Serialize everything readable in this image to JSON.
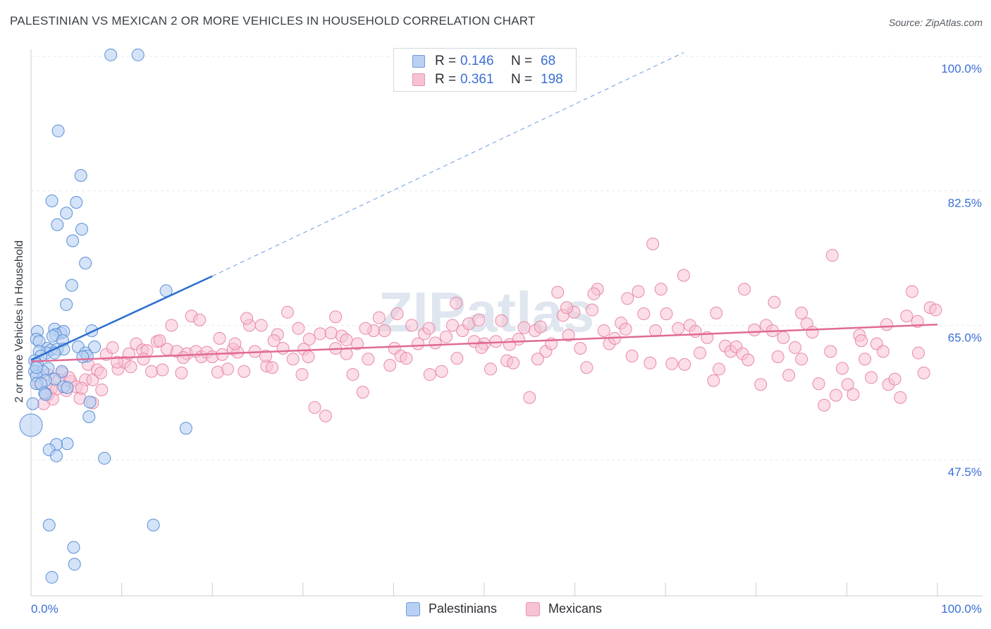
{
  "title": "PALESTINIAN VS MEXICAN 2 OR MORE VEHICLES IN HOUSEHOLD CORRELATION CHART",
  "source": "Source: ZipAtlas.com",
  "watermark": "ZIPatlas",
  "legend": {
    "rows": [
      {
        "r_label": "R =",
        "r_value": "0.146",
        "n_label": "N =",
        "n_value": "68"
      },
      {
        "r_label": "R =",
        "r_value": "0.361",
        "n_label": "N =",
        "n_value": "198"
      }
    ]
  },
  "bottom_legend": [
    "Palestinians",
    "Mexicans"
  ],
  "colors": {
    "blue_fill": "#b8d0f2",
    "blue_stroke": "#5b8fd9",
    "blue_line": "#2a6fd0",
    "pink_fill": "#f7c3d4",
    "pink_stroke": "#e888a8",
    "pink_line": "#e06a94",
    "tick_label": "#3a6fd6",
    "grid": "#e6e9ee"
  },
  "chart_data": {
    "type": "scatter",
    "title": "PALESTINIAN VS MEXICAN 2 OR MORE VEHICLES IN HOUSEHOLD CORRELATION CHART",
    "xlabel": "",
    "ylabel": "2 or more Vehicles in Household",
    "xlim": [
      0,
      100
    ],
    "ylim": [
      29,
      102
    ],
    "x_tick_labels": [
      "0.0%",
      "100.0%"
    ],
    "y_ticks": [
      100.0,
      82.5,
      65.0,
      47.5
    ],
    "y_tick_labels": [
      "100.0%",
      "82.5%",
      "65.0%",
      "47.5%"
    ],
    "grid": true,
    "series": [
      {
        "name": "Palestinians",
        "r": 0.146,
        "n": 68,
        "trend": {
          "x0": 0,
          "y0": 60.5,
          "x1": 20,
          "y1": 71.4,
          "extend_to_x": 72,
          "extend_to_y": 100.5
        },
        "points": [
          [
            8.8,
            100.2
          ],
          [
            11.8,
            100.2
          ],
          [
            3.0,
            90.3
          ],
          [
            5.5,
            84.5
          ],
          [
            2.3,
            81.2
          ],
          [
            5.0,
            81.0
          ],
          [
            3.9,
            79.6
          ],
          [
            2.9,
            78.1
          ],
          [
            5.6,
            77.5
          ],
          [
            4.6,
            76.0
          ],
          [
            6.0,
            73.1
          ],
          [
            4.5,
            70.2
          ],
          [
            14.9,
            69.5
          ],
          [
            3.9,
            67.7
          ],
          [
            2.6,
            64.5
          ],
          [
            3.3,
            64.0
          ],
          [
            0.7,
            64.2
          ],
          [
            3.6,
            64.2
          ],
          [
            2.7,
            63.8
          ],
          [
            6.7,
            64.3
          ],
          [
            0.6,
            63.2
          ],
          [
            2.4,
            63.6
          ],
          [
            0.9,
            62.9
          ],
          [
            3.5,
            63.0
          ],
          [
            1.8,
            62.0
          ],
          [
            2.2,
            61.8
          ],
          [
            2.9,
            61.9
          ],
          [
            1.7,
            61.4
          ],
          [
            3.6,
            61.9
          ],
          [
            5.2,
            62.2
          ],
          [
            7.0,
            62.2
          ],
          [
            0.9,
            61.6
          ],
          [
            2.6,
            61.4
          ],
          [
            6.0,
            61.4
          ],
          [
            1.1,
            61.0
          ],
          [
            6.2,
            61.0
          ],
          [
            5.7,
            60.9
          ],
          [
            0.4,
            60.4
          ],
          [
            0.7,
            59.9
          ],
          [
            1.9,
            59.4
          ],
          [
            0.4,
            59.0
          ],
          [
            1.3,
            59.0
          ],
          [
            0.6,
            58.4
          ],
          [
            3.4,
            59.0
          ],
          [
            2.6,
            58.0
          ],
          [
            1.6,
            57.8
          ],
          [
            0.6,
            57.4
          ],
          [
            1.1,
            57.4
          ],
          [
            3.6,
            57.0
          ],
          [
            4.0,
            56.9
          ],
          [
            1.5,
            56.2
          ],
          [
            1.6,
            56.0
          ],
          [
            6.5,
            55.0
          ],
          [
            0.2,
            54.8
          ],
          [
            6.4,
            53.1
          ],
          [
            0.0,
            52.0
          ],
          [
            17.1,
            51.6
          ],
          [
            4.0,
            49.6
          ],
          [
            2.8,
            49.5
          ],
          [
            2.0,
            48.8
          ],
          [
            2.8,
            48.0
          ],
          [
            8.1,
            47.7
          ],
          [
            2.0,
            39.0
          ],
          [
            13.5,
            39.0
          ],
          [
            4.7,
            36.1
          ],
          [
            4.8,
            33.9
          ],
          [
            2.3,
            32.2
          ],
          [
            0.6,
            59.5
          ]
        ]
      },
      {
        "name": "Mexicans",
        "r": 0.361,
        "n": 198,
        "trend": {
          "x0": 0,
          "y0": 60.3,
          "x1": 100,
          "y1": 65.1
        },
        "points": [
          [
            0.8,
            57.5
          ],
          [
            1.4,
            54.8
          ],
          [
            1.9,
            56.0
          ],
          [
            2.2,
            56.7
          ],
          [
            2.8,
            56.7
          ],
          [
            3.4,
            58.8
          ],
          [
            3.9,
            56.5
          ],
          [
            4.4,
            57.7
          ],
          [
            5.0,
            57.0
          ],
          [
            5.4,
            55.5
          ],
          [
            6.0,
            57.9
          ],
          [
            6.3,
            59.9
          ],
          [
            6.8,
            57.9
          ],
          [
            7.3,
            59.2
          ],
          [
            7.8,
            56.6
          ],
          [
            8.3,
            61.2
          ],
          [
            9.0,
            62.1
          ],
          [
            9.6,
            59.3
          ],
          [
            10.3,
            60.2
          ],
          [
            11.0,
            59.6
          ],
          [
            11.6,
            62.6
          ],
          [
            12.3,
            61.8
          ],
          [
            12.8,
            61.7
          ],
          [
            13.3,
            59.0
          ],
          [
            13.9,
            62.9
          ],
          [
            14.5,
            59.2
          ],
          [
            15.0,
            61.9
          ],
          [
            15.5,
            65.0
          ],
          [
            16.1,
            61.6
          ],
          [
            16.6,
            58.8
          ],
          [
            17.2,
            61.3
          ],
          [
            17.7,
            66.2
          ],
          [
            18.2,
            61.6
          ],
          [
            18.8,
            60.9
          ],
          [
            19.4,
            61.5
          ],
          [
            20.0,
            60.9
          ],
          [
            20.6,
            58.9
          ],
          [
            21.1,
            61.2
          ],
          [
            21.7,
            59.3
          ],
          [
            22.3,
            61.9
          ],
          [
            22.8,
            61.5
          ],
          [
            23.5,
            59.0
          ],
          [
            24.1,
            65.0
          ],
          [
            24.7,
            61.6
          ],
          [
            25.4,
            65.0
          ],
          [
            26.0,
            59.7
          ],
          [
            26.6,
            59.5
          ],
          [
            27.2,
            63.8
          ],
          [
            27.8,
            62.0
          ],
          [
            28.3,
            66.7
          ],
          [
            28.9,
            60.6
          ],
          [
            29.5,
            64.6
          ],
          [
            30.1,
            61.9
          ],
          [
            30.6,
            60.9
          ],
          [
            31.3,
            54.3
          ],
          [
            31.9,
            63.9
          ],
          [
            32.5,
            53.2
          ],
          [
            33.1,
            64.0
          ],
          [
            33.6,
            62.0
          ],
          [
            34.3,
            63.6
          ],
          [
            34.8,
            61.3
          ],
          [
            35.5,
            58.6
          ],
          [
            36.0,
            62.6
          ],
          [
            36.6,
            56.3
          ],
          [
            37.2,
            60.6
          ],
          [
            37.8,
            64.3
          ],
          [
            38.4,
            66.0
          ],
          [
            39.0,
            64.3
          ],
          [
            39.6,
            59.8
          ],
          [
            40.1,
            62.0
          ],
          [
            40.8,
            61.0
          ],
          [
            41.4,
            60.7
          ],
          [
            42.0,
            65.0
          ],
          [
            42.7,
            62.6
          ],
          [
            43.4,
            63.9
          ],
          [
            44.0,
            58.6
          ],
          [
            44.6,
            62.7
          ],
          [
            45.3,
            59.0
          ],
          [
            45.8,
            63.5
          ],
          [
            46.5,
            65.0
          ],
          [
            47.0,
            60.7
          ],
          [
            47.6,
            64.3
          ],
          [
            48.3,
            65.2
          ],
          [
            48.9,
            62.9
          ],
          [
            49.4,
            65.7
          ],
          [
            50.0,
            62.6
          ],
          [
            50.7,
            59.3
          ],
          [
            51.3,
            62.9
          ],
          [
            51.9,
            65.6
          ],
          [
            52.5,
            60.4
          ],
          [
            53.2,
            60.1
          ],
          [
            53.8,
            63.2
          ],
          [
            54.4,
            64.7
          ],
          [
            55.0,
            55.6
          ],
          [
            55.6,
            64.3
          ],
          [
            56.2,
            64.8
          ],
          [
            56.8,
            61.6
          ],
          [
            57.4,
            62.6
          ],
          [
            58.1,
            69.3
          ],
          [
            58.7,
            66.3
          ],
          [
            59.3,
            63.7
          ],
          [
            59.9,
            66.7
          ],
          [
            60.6,
            62.0
          ],
          [
            61.3,
            59.5
          ],
          [
            61.9,
            67.0
          ],
          [
            62.5,
            69.7
          ],
          [
            63.2,
            64.3
          ],
          [
            63.8,
            62.6
          ],
          [
            64.4,
            63.3
          ],
          [
            65.1,
            65.3
          ],
          [
            65.6,
            64.5
          ],
          [
            66.3,
            61.0
          ],
          [
            67.0,
            69.4
          ],
          [
            67.6,
            66.5
          ],
          [
            68.3,
            60.1
          ],
          [
            68.9,
            64.3
          ],
          [
            69.5,
            69.7
          ],
          [
            70.1,
            66.5
          ],
          [
            70.7,
            60.0
          ],
          [
            71.4,
            64.6
          ],
          [
            72.1,
            59.9
          ],
          [
            72.7,
            65.0
          ],
          [
            73.3,
            64.2
          ],
          [
            73.8,
            61.4
          ],
          [
            74.6,
            63.4
          ],
          [
            75.3,
            57.8
          ],
          [
            75.9,
            59.3
          ],
          [
            76.6,
            62.3
          ],
          [
            77.2,
            61.6
          ],
          [
            77.8,
            62.2
          ],
          [
            78.5,
            61.3
          ],
          [
            79.1,
            60.5
          ],
          [
            79.8,
            64.4
          ],
          [
            80.5,
            57.3
          ],
          [
            81.1,
            65.0
          ],
          [
            81.8,
            64.3
          ],
          [
            82.4,
            60.9
          ],
          [
            83.0,
            63.4
          ],
          [
            83.6,
            58.5
          ],
          [
            84.3,
            62.1
          ],
          [
            85.0,
            60.6
          ],
          [
            85.6,
            65.2
          ],
          [
            86.2,
            64.1
          ],
          [
            86.9,
            57.4
          ],
          [
            87.5,
            54.6
          ],
          [
            88.2,
            61.6
          ],
          [
            88.8,
            55.9
          ],
          [
            89.5,
            59.4
          ],
          [
            90.1,
            57.3
          ],
          [
            90.7,
            56.0
          ],
          [
            91.4,
            63.7
          ],
          [
            92.0,
            60.6
          ],
          [
            92.7,
            58.2
          ],
          [
            93.3,
            62.6
          ],
          [
            94.0,
            61.6
          ],
          [
            94.6,
            57.3
          ],
          [
            95.3,
            58.0
          ],
          [
            95.9,
            55.6
          ],
          [
            96.6,
            66.2
          ],
          [
            97.2,
            69.4
          ],
          [
            97.9,
            61.4
          ],
          [
            98.5,
            58.8
          ],
          [
            99.2,
            67.3
          ],
          [
            99.8,
            67.0
          ],
          [
            2.4,
            55.4
          ],
          [
            4.2,
            58.2
          ],
          [
            6.8,
            54.9
          ],
          [
            9.5,
            60.2
          ],
          [
            12.4,
            60.6
          ],
          [
            16.8,
            60.8
          ],
          [
            20.8,
            63.3
          ],
          [
            23.8,
            65.9
          ],
          [
            26.8,
            63.0
          ],
          [
            29.9,
            58.6
          ],
          [
            33.6,
            66.1
          ],
          [
            36.9,
            64.6
          ],
          [
            40.4,
            66.5
          ],
          [
            43.9,
            64.6
          ],
          [
            46.9,
            67.9
          ],
          [
            49.7,
            62.1
          ],
          [
            52.8,
            62.5
          ],
          [
            55.9,
            60.6
          ],
          [
            59.1,
            67.3
          ],
          [
            62.1,
            69.1
          ],
          [
            65.8,
            68.5
          ],
          [
            68.6,
            75.6
          ],
          [
            72.0,
            71.5
          ],
          [
            75.6,
            66.6
          ],
          [
            78.7,
            69.7
          ],
          [
            82.0,
            68.0
          ],
          [
            85.0,
            66.6
          ],
          [
            88.4,
            74.1
          ],
          [
            91.6,
            63.0
          ],
          [
            94.4,
            65.1
          ],
          [
            97.8,
            65.5
          ],
          [
            1.9,
            58.6
          ],
          [
            3.1,
            57.9
          ],
          [
            5.6,
            56.8
          ],
          [
            7.7,
            58.8
          ],
          [
            10.8,
            61.3
          ],
          [
            14.2,
            63.0
          ],
          [
            18.6,
            65.7
          ],
          [
            22.5,
            62.6
          ],
          [
            25.9,
            61.0
          ],
          [
            30.7,
            63.2
          ],
          [
            34.8,
            63.1
          ]
        ]
      }
    ]
  }
}
